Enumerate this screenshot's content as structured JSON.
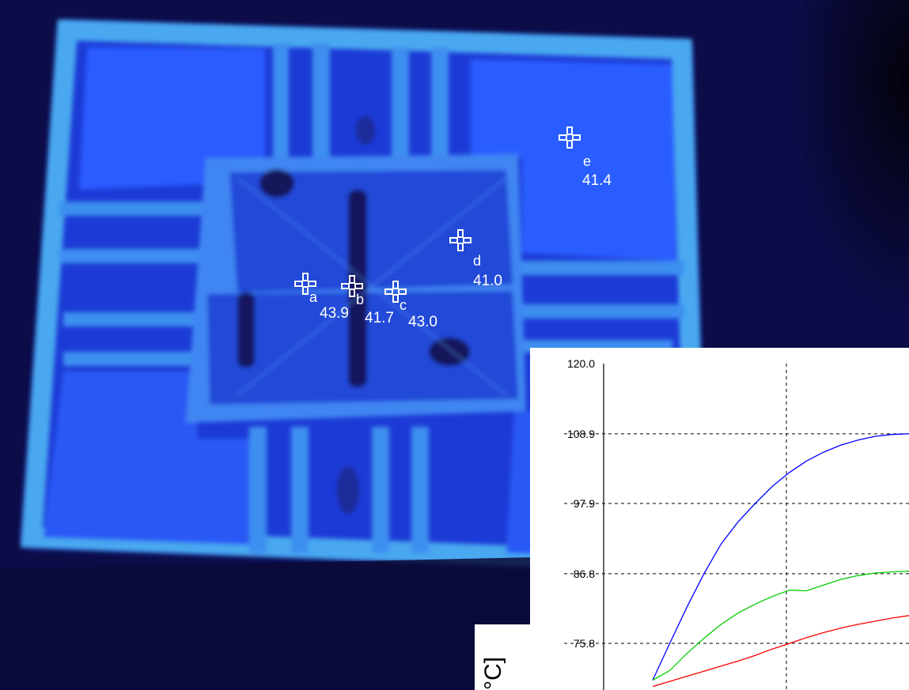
{
  "points": [
    {
      "letter": "a",
      "value": "43.9"
    },
    {
      "letter": "b",
      "value": "41.7"
    },
    {
      "letter": "c",
      "value": "43.0"
    },
    {
      "letter": "d",
      "value": "41.0"
    },
    {
      "letter": "e",
      "value": "41.4"
    }
  ],
  "chart_data": {
    "type": "line",
    "yticks": [
      "120.0",
      "108.9",
      "97.9",
      "86.8",
      "75.8"
    ],
    "ylim": [
      70.0,
      120.0
    ],
    "ylabel": "°C]",
    "grid": true,
    "series": [
      {
        "color": "#0000ff",
        "x": [
          0,
          4,
          8,
          12,
          16,
          20,
          24,
          28,
          32,
          36,
          40,
          44,
          48,
          52,
          56,
          60
        ],
        "y": [
          70.0,
          75.8,
          81.5,
          86.8,
          91.5,
          95.0,
          97.9,
          100.6,
          102.8,
          104.6,
          106.0,
          107.1,
          107.9,
          108.5,
          108.8,
          108.9
        ]
      },
      {
        "color": "#00cc00",
        "x": [
          0,
          4,
          8,
          12,
          16,
          20,
          24,
          28,
          32,
          36,
          40,
          44,
          48,
          52,
          56,
          60
        ],
        "y": [
          70.0,
          71.5,
          74.2,
          76.6,
          78.8,
          80.6,
          82.0,
          83.2,
          84.2,
          84.1,
          85.0,
          85.9,
          86.5,
          86.9,
          87.1,
          87.2
        ]
      },
      {
        "color": "#ff0000",
        "x": [
          0,
          4,
          8,
          12,
          16,
          20,
          24,
          28,
          32,
          36,
          40,
          44,
          48,
          52,
          56,
          60
        ],
        "y": [
          69.0,
          69.8,
          70.6,
          71.4,
          72.2,
          73.0,
          73.9,
          74.9,
          75.8,
          76.7,
          77.5,
          78.2,
          78.8,
          79.3,
          79.8,
          80.2
        ]
      }
    ]
  }
}
